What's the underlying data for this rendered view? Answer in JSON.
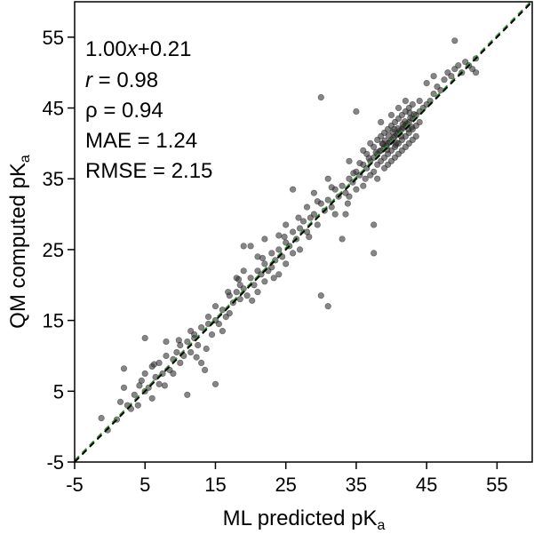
{
  "chart_data": {
    "type": "scatter",
    "xlabel": "ML predicted pK",
    "xlabel_sub": "a",
    "ylabel": "QM computed pK",
    "ylabel_sub": "a",
    "xlim": [
      -5,
      60
    ],
    "ylim": [
      -5,
      60
    ],
    "xticks": [
      -5,
      5,
      15,
      25,
      35,
      45,
      55
    ],
    "yticks": [
      -5,
      5,
      15,
      25,
      35,
      45,
      55
    ],
    "xtick_labels": [
      "-5",
      "5",
      "15",
      "25",
      "35",
      "45",
      "55"
    ],
    "ytick_labels": [
      "-5",
      "5",
      "15",
      "25",
      "35",
      "45",
      "55"
    ],
    "grid": false,
    "identity_line": {
      "x": [
        -5,
        60
      ],
      "y": [
        -5,
        60
      ],
      "color": "#000000",
      "style": "dashed"
    },
    "fit_line": {
      "slope": 1.0,
      "intercept": 0.21,
      "color": "#3a9a3a",
      "style": "dashed"
    },
    "annotations": {
      "fit": {
        "coef": "1.00",
        "var": "x",
        "rest": "+0.21"
      },
      "r": {
        "symbol": "r",
        "text": " = 0.98"
      },
      "rho": "ρ = 0.94",
      "mae": "MAE = 1.24",
      "rmse": "RMSE = 2.15"
    },
    "marker_color": "#333333",
    "marker_opacity": 0.6,
    "points": [
      [
        -1.2,
        1.2
      ],
      [
        -0.3,
        -0.5
      ],
      [
        1.0,
        1.0
      ],
      [
        1.5,
        3.5
      ],
      [
        2.0,
        5.5
      ],
      [
        2.0,
        8.2
      ],
      [
        2.5,
        3.0
      ],
      [
        3.0,
        2.5
      ],
      [
        3.5,
        4.5
      ],
      [
        4.0,
        3.0
      ],
      [
        4.5,
        6.5
      ],
      [
        5.0,
        5.0
      ],
      [
        5.0,
        7.5
      ],
      [
        5.0,
        12.5
      ],
      [
        5.5,
        5.5
      ],
      [
        6.0,
        4.0
      ],
      [
        6.0,
        8.5
      ],
      [
        6.5,
        7.0
      ],
      [
        7.0,
        6.0
      ],
      [
        7.0,
        9.0
      ],
      [
        7.5,
        7.5
      ],
      [
        8.0,
        10.0
      ],
      [
        8.0,
        12.0
      ],
      [
        8.5,
        8.0
      ],
      [
        9.0,
        9.5
      ],
      [
        9.0,
        7.5
      ],
      [
        9.5,
        10.5
      ],
      [
        10.0,
        11.5
      ],
      [
        10.0,
        9.0
      ],
      [
        10.5,
        10.0
      ],
      [
        11.0,
        12.0
      ],
      [
        11.0,
        4.5
      ],
      [
        11.5,
        13.5
      ],
      [
        11.5,
        10.5
      ],
      [
        12.0,
        12.5
      ],
      [
        12.0,
        13.0
      ],
      [
        12.5,
        11.5
      ],
      [
        13.0,
        14.0
      ],
      [
        13.0,
        9.0
      ],
      [
        13.5,
        8.0
      ],
      [
        14.0,
        14.5
      ],
      [
        14.0,
        15.5
      ],
      [
        14.5,
        13.0
      ],
      [
        15.0,
        15.0
      ],
      [
        15.0,
        17.0
      ],
      [
        15.0,
        6.0
      ],
      [
        15.5,
        14.5
      ],
      [
        16.0,
        16.5
      ],
      [
        16.0,
        13.5
      ],
      [
        16.5,
        15.5
      ],
      [
        17.0,
        18.5
      ],
      [
        17.0,
        16.0
      ],
      [
        17.5,
        17.5
      ],
      [
        18.0,
        19.0
      ],
      [
        18.0,
        21.0
      ],
      [
        18.5,
        18.0
      ],
      [
        18.5,
        20.0
      ],
      [
        19.0,
        19.5
      ],
      [
        19.0,
        22.0
      ],
      [
        19.0,
        25.5
      ],
      [
        19.5,
        18.5
      ],
      [
        20.0,
        21.0
      ],
      [
        20.0,
        25.5
      ],
      [
        20.5,
        20.0
      ],
      [
        21.0,
        22.0
      ],
      [
        21.0,
        24.0
      ],
      [
        21.0,
        19.0
      ],
      [
        21.5,
        21.5
      ],
      [
        22.0,
        23.0
      ],
      [
        22.0,
        26.5
      ],
      [
        22.0,
        20.5
      ],
      [
        22.5,
        22.0
      ],
      [
        23.0,
        24.5
      ],
      [
        23.0,
        22.5
      ],
      [
        23.5,
        23.5
      ],
      [
        24.0,
        25.0
      ],
      [
        24.0,
        27.0
      ],
      [
        24.0,
        21.5
      ],
      [
        24.5,
        24.0
      ],
      [
        25.0,
        26.0
      ],
      [
        25.0,
        28.5
      ],
      [
        25.0,
        23.0
      ],
      [
        25.5,
        25.5
      ],
      [
        26.0,
        27.5
      ],
      [
        26.0,
        33.5
      ],
      [
        26.0,
        24.5
      ],
      [
        26.5,
        26.5
      ],
      [
        27.0,
        28.0
      ],
      [
        27.0,
        25.0
      ],
      [
        27.5,
        29.0
      ],
      [
        28.0,
        27.5
      ],
      [
        28.0,
        31.0
      ],
      [
        28.5,
        29.5
      ],
      [
        29.0,
        30.0
      ],
      [
        29.0,
        33.0
      ],
      [
        29.5,
        28.5
      ],
      [
        30.0,
        31.5
      ],
      [
        30.0,
        18.5
      ],
      [
        30.0,
        46.5
      ],
      [
        30.5,
        30.5
      ],
      [
        31.0,
        32.0
      ],
      [
        31.0,
        17.0
      ],
      [
        31.0,
        35.0
      ],
      [
        31.5,
        31.0
      ],
      [
        32.0,
        33.5
      ],
      [
        32.0,
        30.0
      ],
      [
        32.5,
        32.5
      ],
      [
        33.0,
        34.0
      ],
      [
        33.0,
        26.5
      ],
      [
        33.5,
        33.0
      ],
      [
        33.5,
        30.0
      ],
      [
        34.0,
        35.0
      ],
      [
        34.0,
        37.5
      ],
      [
        34.0,
        32.5
      ],
      [
        34.5,
        34.5
      ],
      [
        35.0,
        36.0
      ],
      [
        35.0,
        44.5
      ],
      [
        35.0,
        33.5
      ],
      [
        35.5,
        35.5
      ],
      [
        36.0,
        37.0
      ],
      [
        36.0,
        34.0
      ],
      [
        36.0,
        39.0
      ],
      [
        36.5,
        36.5
      ],
      [
        36.5,
        38.5
      ],
      [
        37.0,
        37.5
      ],
      [
        37.0,
        35.5
      ],
      [
        37.0,
        40.0
      ],
      [
        37.5,
        38.0
      ],
      [
        37.5,
        36.0
      ],
      [
        37.5,
        39.5
      ],
      [
        37.5,
        24.5
      ],
      [
        37.5,
        28.5
      ],
      [
        38.0,
        38.5
      ],
      [
        38.0,
        37.0
      ],
      [
        38.0,
        40.5
      ],
      [
        38.0,
        35.0
      ],
      [
        38.5,
        39.0
      ],
      [
        38.5,
        37.5
      ],
      [
        38.5,
        41.0
      ],
      [
        38.5,
        43.0
      ],
      [
        39.0,
        39.5
      ],
      [
        39.0,
        38.0
      ],
      [
        39.0,
        41.5
      ],
      [
        39.0,
        36.5
      ],
      [
        39.5,
        40.0
      ],
      [
        39.5,
        38.5
      ],
      [
        39.5,
        42.0
      ],
      [
        39.5,
        37.0
      ],
      [
        40.0,
        40.5
      ],
      [
        40.0,
        39.0
      ],
      [
        40.0,
        42.5
      ],
      [
        40.0,
        37.5
      ],
      [
        40.0,
        44.0
      ],
      [
        40.5,
        41.0
      ],
      [
        40.5,
        39.5
      ],
      [
        40.5,
        43.0
      ],
      [
        40.5,
        38.0
      ],
      [
        41.0,
        41.5
      ],
      [
        41.0,
        40.0
      ],
      [
        41.0,
        43.5
      ],
      [
        41.0,
        38.5
      ],
      [
        41.0,
        45.0
      ],
      [
        41.5,
        42.0
      ],
      [
        41.5,
        40.5
      ],
      [
        41.5,
        44.0
      ],
      [
        41.5,
        39.0
      ],
      [
        42.0,
        42.5
      ],
      [
        42.0,
        41.0
      ],
      [
        42.0,
        44.5
      ],
      [
        42.0,
        39.5
      ],
      [
        42.0,
        46.0
      ],
      [
        42.5,
        43.0
      ],
      [
        42.5,
        41.5
      ],
      [
        42.5,
        45.0
      ],
      [
        42.5,
        40.0
      ],
      [
        43.0,
        43.5
      ],
      [
        43.0,
        42.0
      ],
      [
        43.0,
        45.5
      ],
      [
        43.0,
        40.5
      ],
      [
        43.5,
        44.0
      ],
      [
        43.5,
        42.5
      ],
      [
        43.5,
        41.0
      ],
      [
        44.0,
        44.5
      ],
      [
        44.0,
        43.0
      ],
      [
        44.0,
        46.0
      ],
      [
        44.5,
        45.0
      ],
      [
        45.0,
        45.5
      ],
      [
        45.0,
        48.5
      ],
      [
        45.5,
        46.0
      ],
      [
        46.0,
        47.0
      ],
      [
        46.0,
        49.5
      ],
      [
        46.5,
        48.0
      ],
      [
        47.0,
        47.5
      ],
      [
        47.5,
        49.0
      ],
      [
        48.0,
        50.0
      ],
      [
        48.5,
        49.5
      ],
      [
        49.0,
        54.5
      ],
      [
        49.0,
        50.5
      ],
      [
        49.5,
        51.0
      ],
      [
        50.0,
        50.0
      ],
      [
        50.5,
        51.5
      ],
      [
        51.0,
        51.0
      ],
      [
        51.5,
        50.5
      ],
      [
        52.0,
        52.0
      ],
      [
        52.0,
        50.0
      ],
      [
        39.8,
        40.2
      ],
      [
        40.3,
        40.8
      ],
      [
        40.8,
        41.3
      ],
      [
        41.2,
        41.8
      ],
      [
        39.3,
        39.6
      ],
      [
        40.6,
        39.8
      ],
      [
        41.7,
        42.3
      ],
      [
        42.2,
        42.8
      ],
      [
        38.8,
        39.9
      ],
      [
        39.6,
        41.1
      ],
      [
        40.9,
        42.1
      ],
      [
        41.4,
        41.0
      ],
      [
        42.7,
        43.6
      ],
      [
        38.3,
        38.9
      ],
      [
        39.1,
        40.4
      ],
      [
        40.2,
        41.6
      ],
      [
        41.9,
        43.1
      ],
      [
        42.4,
        42.0
      ],
      [
        43.2,
        44.1
      ],
      [
        37.8,
        38.7
      ],
      [
        39.4,
        39.1
      ],
      [
        40.7,
        40.1
      ],
      [
        41.6,
        42.7
      ],
      [
        42.9,
        42.3
      ],
      [
        36.8,
        37.9
      ],
      [
        38.7,
        40.0
      ],
      [
        40.4,
        42.0
      ],
      [
        42.6,
        44.3
      ],
      [
        35.5,
        37.2
      ],
      [
        36.3,
        35.0
      ],
      [
        34.6,
        35.8
      ],
      [
        33.8,
        31.5
      ],
      [
        31.5,
        33.8
      ],
      [
        29.5,
        31.8
      ],
      [
        28.3,
        26.8
      ],
      [
        26.8,
        29.5
      ],
      [
        24.8,
        26.8
      ],
      [
        23.3,
        21.0
      ],
      [
        21.7,
        23.8
      ],
      [
        20.2,
        17.8
      ],
      [
        18.3,
        20.8
      ],
      [
        16.8,
        19.0
      ],
      [
        13.7,
        11.0
      ],
      [
        12.3,
        9.8
      ],
      [
        9.8,
        12.2
      ],
      [
        7.8,
        5.8
      ],
      [
        6.3,
        8.8
      ],
      [
        4.2,
        5.8
      ]
    ]
  }
}
